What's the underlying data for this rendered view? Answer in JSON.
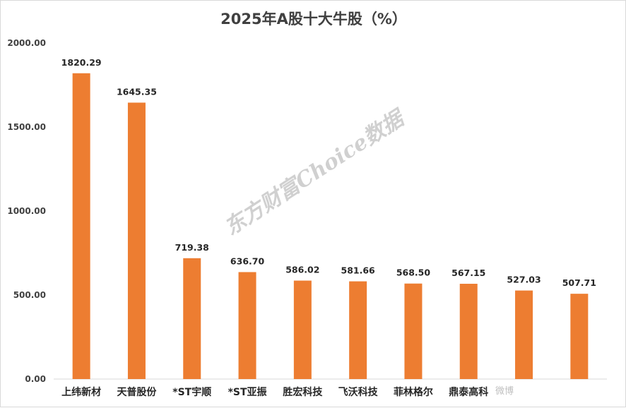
{
  "colors": {
    "bar": "#ED7D31",
    "axis": "#d9d9d9",
    "text": "#404040"
  },
  "watermark": "东方财富Choice数据",
  "corner_watermark": "微博",
  "chart_data": {
    "type": "bar",
    "title": "2025年A股十大牛股（%）",
    "xlabel": "",
    "ylabel": "",
    "ylim": [
      0,
      2000
    ],
    "yticks": [
      "0.00",
      "500.00",
      "1000.00",
      "1500.00",
      "2000.00"
    ],
    "grid": false,
    "legend": "none",
    "categories": [
      "上纬新材",
      "天普股份",
      "*ST宇顺",
      "*ST亚振",
      "胜宏科技",
      "飞沃科技",
      "菲林格尔",
      "鼎泰高科",
      "",
      ""
    ],
    "values": [
      1820.29,
      1645.35,
      719.38,
      636.7,
      586.02,
      581.66,
      568.5,
      567.15,
      527.03,
      507.71
    ],
    "value_labels": [
      "1820.29",
      "1645.35",
      "719.38",
      "636.70",
      "586.02",
      "581.66",
      "568.50",
      "567.15",
      "527.03",
      "507.71"
    ]
  }
}
